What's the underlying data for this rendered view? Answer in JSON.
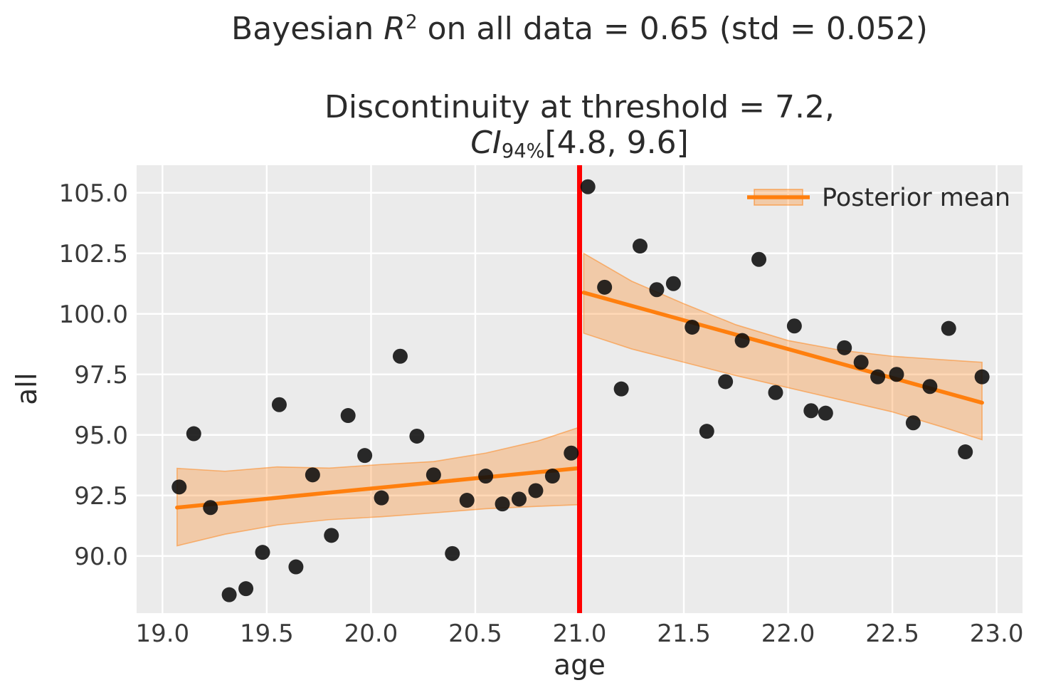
{
  "figure": {
    "suptitle": {
      "pre": "Bayesian ",
      "var": "R",
      "sup": "2",
      "post": " on all data = 0.65 (std = 0.052)"
    },
    "axes_title": {
      "line1": "Discontinuity at threshold = 7.2,",
      "ci_label": "CI",
      "ci_sub": "94%",
      "ci_interval": "[4.8, 9.6]"
    }
  },
  "chart_data": {
    "type": "scatter",
    "title": "Discontinuity at threshold = 7.2, CI94%[4.8, 9.6]",
    "suptitle": "Bayesian R2 on all data = 0.65 (std = 0.052)",
    "xlabel": "age",
    "ylabel": "all",
    "xlim": [
      18.876,
      23.124
    ],
    "ylim": [
      87.64,
      106.14
    ],
    "xticks": [
      19.0,
      19.5,
      20.0,
      20.5,
      21.0,
      21.5,
      22.0,
      22.5,
      23.0
    ],
    "yticks": [
      90.0,
      92.5,
      95.0,
      97.5,
      100.0,
      102.5,
      105.0
    ],
    "grid": true,
    "legend": {
      "label": "Posterior mean",
      "position": "upper right"
    },
    "threshold": {
      "x": 21.0
    },
    "series": [
      {
        "name": "observations-left",
        "type": "scatter",
        "points": [
          [
            19.08,
            92.85
          ],
          [
            19.15,
            95.05
          ],
          [
            19.23,
            92.0
          ],
          [
            19.32,
            88.4
          ],
          [
            19.4,
            88.65
          ],
          [
            19.48,
            90.15
          ],
          [
            19.56,
            96.25
          ],
          [
            19.64,
            89.55
          ],
          [
            19.72,
            93.35
          ],
          [
            19.81,
            90.85
          ],
          [
            19.89,
            95.8
          ],
          [
            19.97,
            94.15
          ],
          [
            20.05,
            92.4
          ],
          [
            20.14,
            98.25
          ],
          [
            20.22,
            94.95
          ],
          [
            20.3,
            93.35
          ],
          [
            20.39,
            90.1
          ],
          [
            20.46,
            92.3
          ],
          [
            20.55,
            93.3
          ],
          [
            20.63,
            92.15
          ],
          [
            20.71,
            92.35
          ],
          [
            20.79,
            92.7
          ],
          [
            20.87,
            93.3
          ],
          [
            20.96,
            94.25
          ]
        ]
      },
      {
        "name": "observations-right",
        "type": "scatter",
        "points": [
          [
            21.04,
            105.25
          ],
          [
            21.12,
            101.1
          ],
          [
            21.2,
            96.9
          ],
          [
            21.29,
            102.8
          ],
          [
            21.37,
            101.0
          ],
          [
            21.45,
            101.25
          ],
          [
            21.54,
            99.45
          ],
          [
            21.61,
            95.15
          ],
          [
            21.7,
            97.2
          ],
          [
            21.78,
            98.9
          ],
          [
            21.86,
            102.25
          ],
          [
            21.94,
            96.75
          ],
          [
            22.03,
            99.5
          ],
          [
            22.11,
            96.0
          ],
          [
            22.18,
            95.9
          ],
          [
            22.27,
            98.6
          ],
          [
            22.35,
            98.0
          ],
          [
            22.43,
            97.4
          ],
          [
            22.52,
            97.5
          ],
          [
            22.6,
            95.5
          ],
          [
            22.68,
            97.0
          ],
          [
            22.77,
            99.4
          ],
          [
            22.85,
            94.3
          ],
          [
            22.93,
            97.4
          ]
        ]
      },
      {
        "name": "posterior-mean-left",
        "type": "line",
        "points": [
          [
            19.07,
            92.0
          ],
          [
            21.0,
            93.63
          ]
        ]
      },
      {
        "name": "posterior-mean-right",
        "type": "line",
        "points": [
          [
            21.02,
            100.88
          ],
          [
            22.93,
            96.33
          ]
        ]
      },
      {
        "name": "hdi-band-left",
        "type": "band",
        "x": [
          19.07,
          19.3,
          19.55,
          19.8,
          20.05,
          20.3,
          20.55,
          20.8,
          21.0
        ],
        "hi": [
          93.62,
          93.5,
          93.68,
          93.63,
          93.78,
          93.9,
          94.25,
          94.75,
          95.32
        ],
        "lo": [
          90.42,
          90.9,
          91.28,
          91.5,
          91.62,
          91.78,
          91.95,
          92.05,
          92.12
        ]
      },
      {
        "name": "hdi-band-right",
        "type": "band",
        "x": [
          21.02,
          21.25,
          21.5,
          21.75,
          22.0,
          22.25,
          22.5,
          22.75,
          22.93
        ],
        "hi": [
          102.5,
          101.35,
          100.42,
          99.55,
          98.9,
          98.5,
          98.25,
          98.1,
          98.0
        ],
        "lo": [
          99.2,
          98.55,
          98.0,
          97.45,
          96.95,
          96.45,
          95.95,
          95.3,
          94.8
        ]
      }
    ],
    "colors": {
      "plot_bg": "#ebebeb",
      "grid": "#ffffff",
      "scatter": "#0d0d0d",
      "mean_line": "#ff7f0e",
      "band_fill": "#ff7f0e",
      "threshold": "#ff0000",
      "tick_text": "#3a3a3a",
      "label_text": "#2b2b2b"
    }
  }
}
